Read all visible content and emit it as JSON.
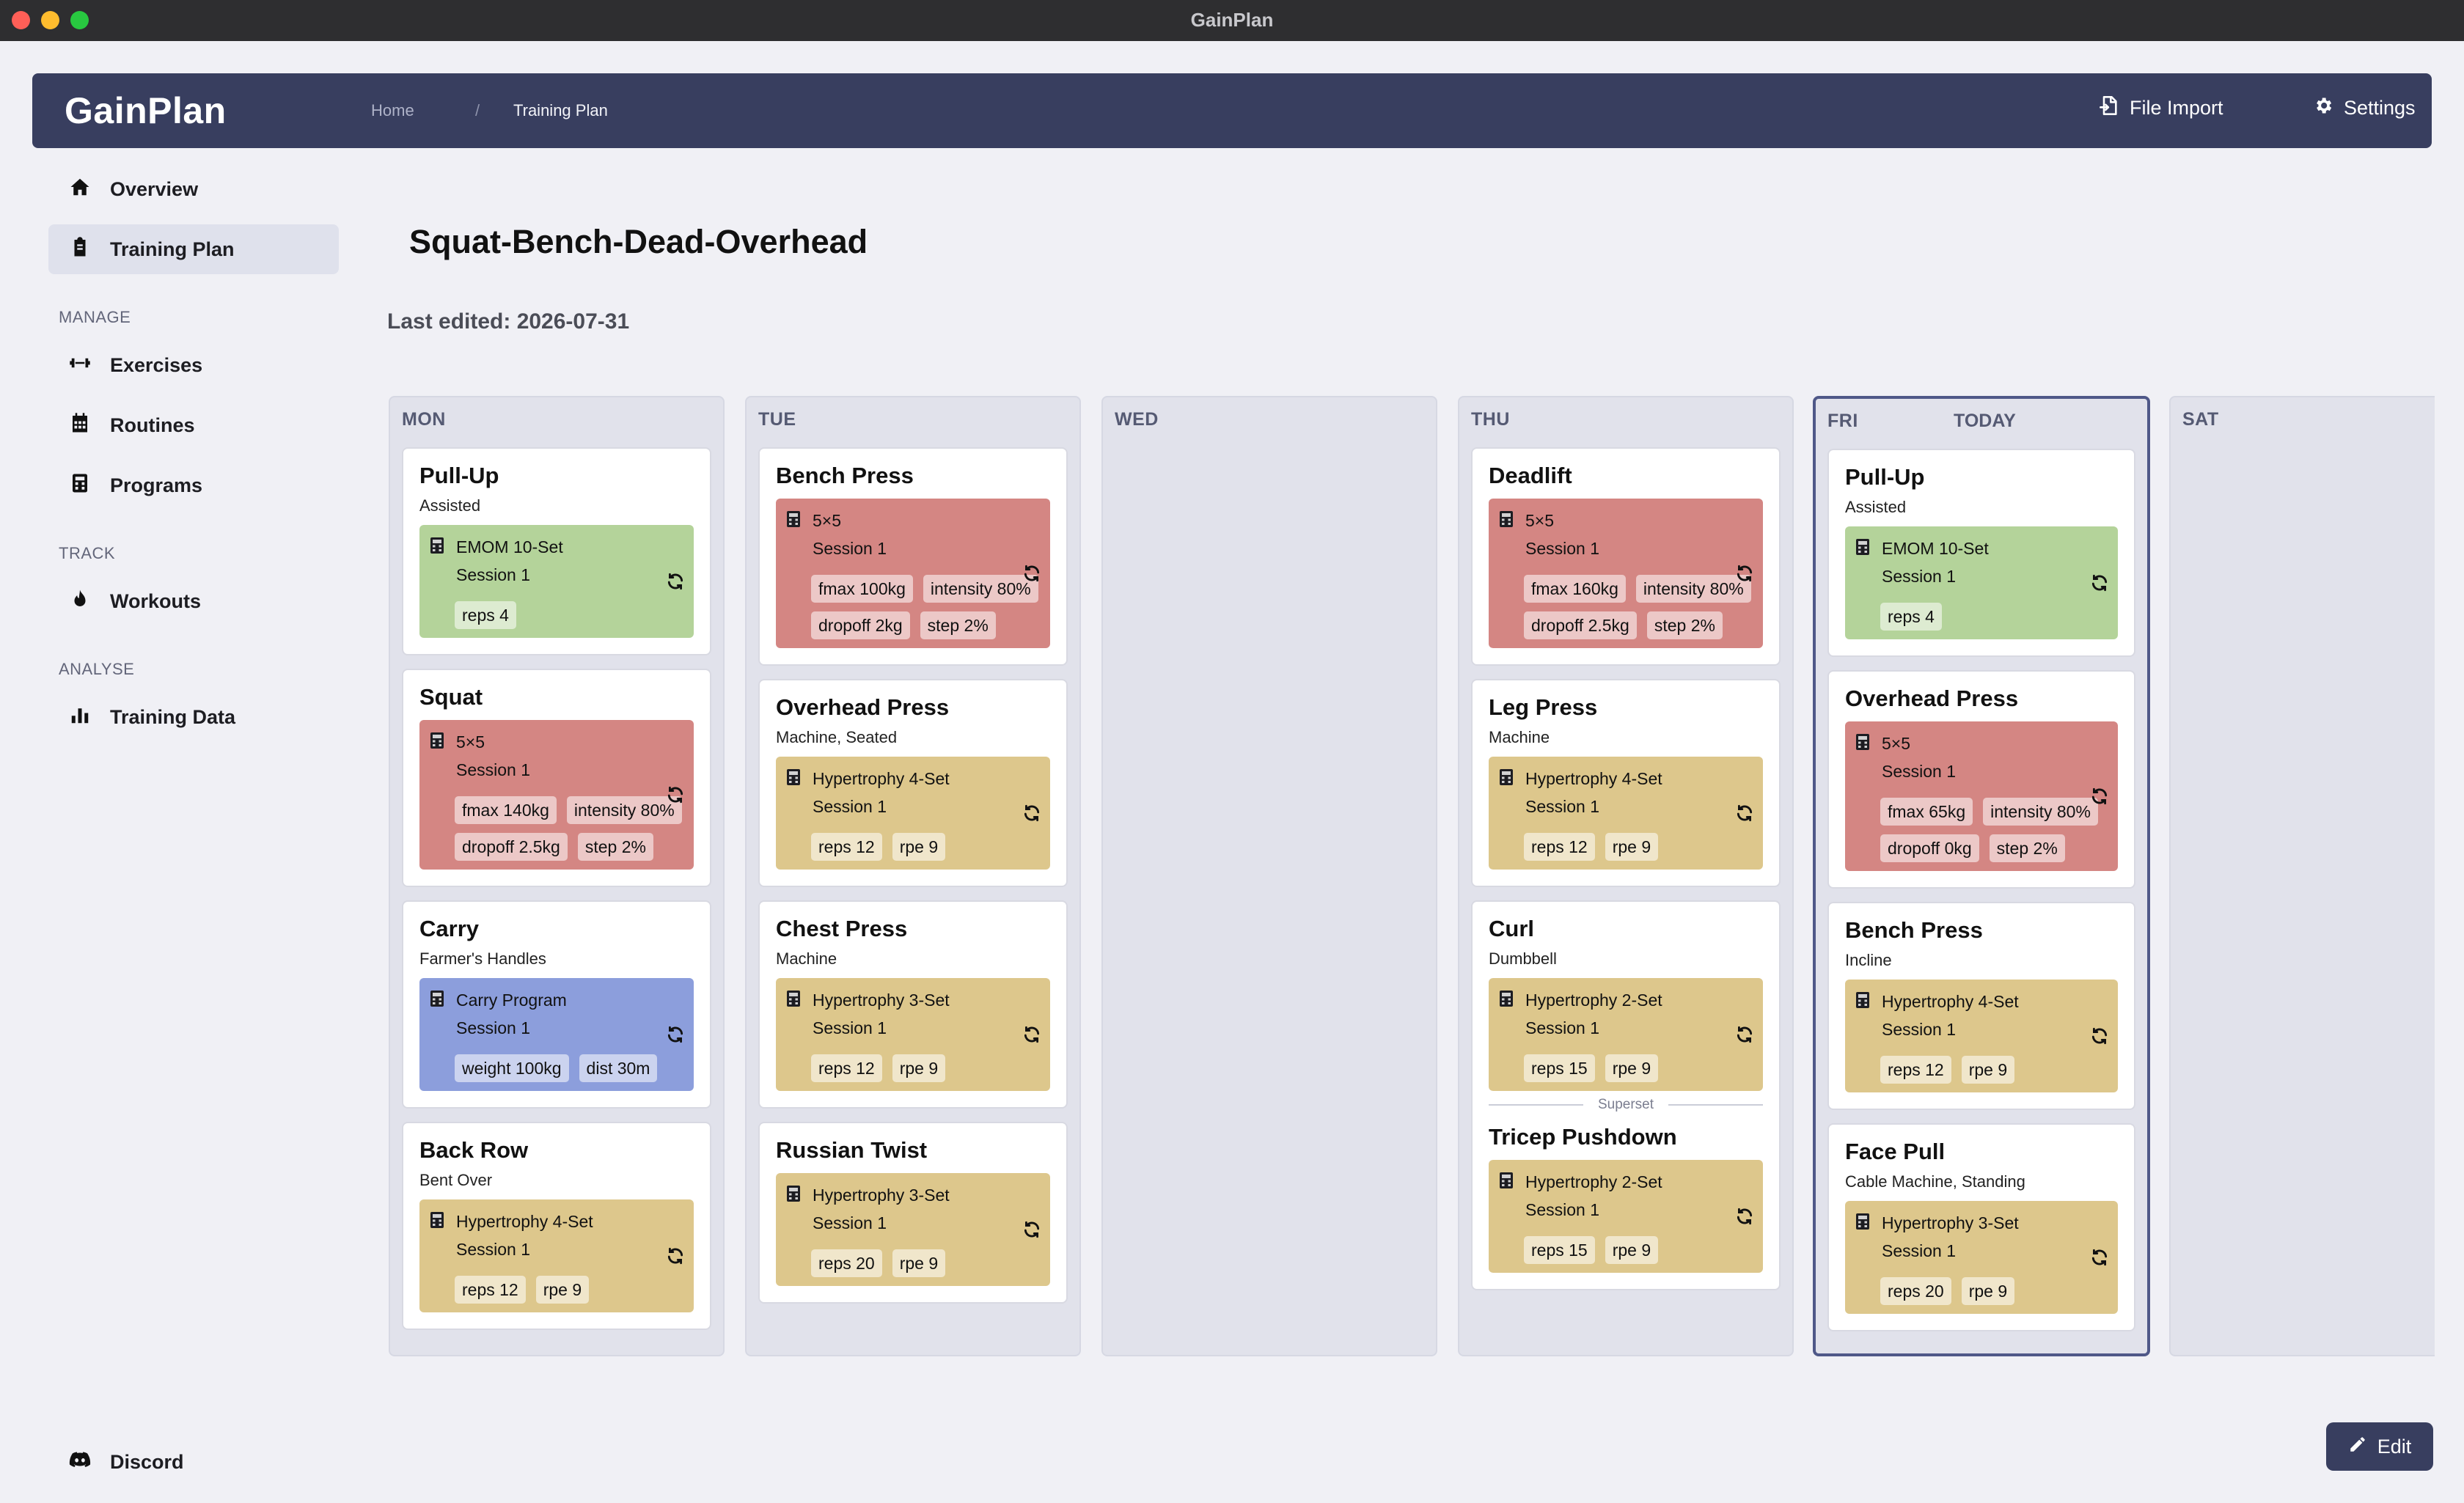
{
  "window": {
    "title": "GainPlan"
  },
  "header": {
    "logo": "GainPlan",
    "breadcrumb": [
      "Home",
      "/",
      "Training Plan"
    ],
    "file_import_label": "File Import",
    "settings_label": "Settings"
  },
  "sidebar": {
    "top_items": [
      {
        "label": "Overview",
        "icon": "home-icon"
      },
      {
        "label": "Training Plan",
        "icon": "clipboard-icon",
        "active": true
      }
    ],
    "sections": [
      {
        "title": "MANAGE",
        "items": [
          {
            "label": "Exercises",
            "icon": "dumbbell-icon"
          },
          {
            "label": "Routines",
            "icon": "calendar-icon"
          },
          {
            "label": "Programs",
            "icon": "calculator-icon"
          }
        ]
      },
      {
        "title": "TRACK",
        "items": [
          {
            "label": "Workouts",
            "icon": "flame-icon"
          }
        ]
      },
      {
        "title": "ANALYSE",
        "items": [
          {
            "label": "Training Data",
            "icon": "bar-chart-icon"
          }
        ]
      }
    ],
    "footer_item": {
      "label": "Discord",
      "icon": "discord-icon"
    }
  },
  "main": {
    "title": "Squat-Bench-Dead-Overhead",
    "last_edited": "Last edited: 2026-07-31",
    "today_label": "TODAY",
    "edit_label": "Edit",
    "superset_label": "Superset"
  },
  "colors": {
    "green": "#b4d39a",
    "red": "#d48683",
    "yellow": "#ddc78c",
    "blue": "#8c9edc",
    "accent": "#383e5f"
  },
  "days": [
    {
      "label": "MON",
      "exercises": [
        {
          "name": "Pull-Up",
          "subtitle": "Assisted",
          "program": {
            "name": "EMOM 10-Set",
            "session": "Session 1",
            "color": "green",
            "tags": [
              "reps 4"
            ]
          }
        },
        {
          "name": "Squat",
          "subtitle": "",
          "program": {
            "name": "5×5",
            "session": "Session 1",
            "color": "red",
            "tags": [
              "fmax 140kg",
              "intensity 80%",
              "dropoff 2.5kg",
              "step 2%"
            ]
          }
        },
        {
          "name": "Carry",
          "subtitle": "Farmer's Handles",
          "program": {
            "name": "Carry Program",
            "session": "Session 1",
            "color": "blue",
            "tags": [
              "weight 100kg",
              "dist 30m"
            ]
          }
        },
        {
          "name": "Back Row",
          "subtitle": "Bent Over",
          "program": {
            "name": "Hypertrophy 4-Set",
            "session": "Session 1",
            "color": "yellow",
            "tags": [
              "reps 12",
              "rpe 9"
            ]
          }
        }
      ]
    },
    {
      "label": "TUE",
      "exercises": [
        {
          "name": "Bench Press",
          "subtitle": "",
          "program": {
            "name": "5×5",
            "session": "Session 1",
            "color": "red",
            "tags": [
              "fmax 100kg",
              "intensity 80%",
              "dropoff 2kg",
              "step 2%"
            ]
          }
        },
        {
          "name": "Overhead Press",
          "subtitle": "Machine, Seated",
          "program": {
            "name": "Hypertrophy 4-Set",
            "session": "Session 1",
            "color": "yellow",
            "tags": [
              "reps 12",
              "rpe 9"
            ]
          }
        },
        {
          "name": "Chest Press",
          "subtitle": "Machine",
          "program": {
            "name": "Hypertrophy 3-Set",
            "session": "Session 1",
            "color": "yellow",
            "tags": [
              "reps 12",
              "rpe 9"
            ]
          }
        },
        {
          "name": "Russian Twist",
          "subtitle": "",
          "program": {
            "name": "Hypertrophy 3-Set",
            "session": "Session 1",
            "color": "yellow",
            "tags": [
              "reps 20",
              "rpe 9"
            ]
          }
        }
      ]
    },
    {
      "label": "WED",
      "exercises": []
    },
    {
      "label": "THU",
      "exercises": [
        {
          "name": "Deadlift",
          "subtitle": "",
          "program": {
            "name": "5×5",
            "session": "Session 1",
            "color": "red",
            "tags": [
              "fmax 160kg",
              "intensity 80%",
              "dropoff 2.5kg",
              "step 2%"
            ]
          }
        },
        {
          "name": "Leg Press",
          "subtitle": "Machine",
          "program": {
            "name": "Hypertrophy 4-Set",
            "session": "Session 1",
            "color": "yellow",
            "tags": [
              "reps 12",
              "rpe 9"
            ]
          }
        },
        {
          "name": "Curl",
          "subtitle": "Dumbbell",
          "program": {
            "name": "Hypertrophy 2-Set",
            "session": "Session 1",
            "color": "yellow",
            "tags": [
              "reps 15",
              "rpe 9"
            ]
          },
          "superset": {
            "name": "Tricep Pushdown",
            "subtitle": "",
            "program": {
              "name": "Hypertrophy 2-Set",
              "session": "Session 1",
              "color": "yellow",
              "tags": [
                "reps 15",
                "rpe 9"
              ]
            }
          }
        }
      ]
    },
    {
      "label": "FRI",
      "today": true,
      "exercises": [
        {
          "name": "Pull-Up",
          "subtitle": "Assisted",
          "program": {
            "name": "EMOM 10-Set",
            "session": "Session 1",
            "color": "green",
            "tags": [
              "reps 4"
            ]
          }
        },
        {
          "name": "Overhead Press",
          "subtitle": "",
          "program": {
            "name": "5×5",
            "session": "Session 1",
            "color": "red",
            "tags": [
              "fmax 65kg",
              "intensity 80%",
              "dropoff 0kg",
              "step 2%"
            ]
          }
        },
        {
          "name": "Bench Press",
          "subtitle": "Incline",
          "program": {
            "name": "Hypertrophy 4-Set",
            "session": "Session 1",
            "color": "yellow",
            "tags": [
              "reps 12",
              "rpe 9"
            ]
          }
        },
        {
          "name": "Face Pull",
          "subtitle": "Cable Machine, Standing",
          "program": {
            "name": "Hypertrophy 3-Set",
            "session": "Session 1",
            "color": "yellow",
            "tags": [
              "reps 20",
              "rpe 9"
            ]
          }
        }
      ]
    },
    {
      "label": "SAT",
      "exercises": []
    }
  ]
}
